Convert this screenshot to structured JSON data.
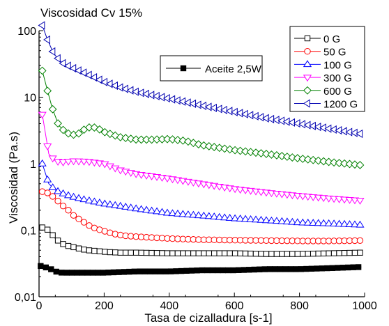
{
  "chart_data": {
    "type": "line",
    "title": "Viscosidad Cv 15%",
    "xlabel": "Tasa de cizalladura [s-1]",
    "ylabel": "Viscosidad (Pa.s)",
    "xlim": [
      0,
      1000
    ],
    "ylim": [
      0.01,
      100
    ],
    "yscale": "log",
    "xticks": [
      0,
      200,
      400,
      600,
      800,
      1000
    ],
    "xtick_labels": [
      "0",
      "200",
      "400",
      "600",
      "800",
      "1000"
    ],
    "yticks": [
      0.01,
      0.1,
      1,
      10,
      100
    ],
    "ytick_labels": [
      "0,01",
      "0,1",
      "1",
      "10",
      "100"
    ],
    "grid": false,
    "legend_position": "top-right",
    "series": [
      {
        "name": "0 G",
        "color": "#000000",
        "marker": "square-open",
        "points": [
          [
            10,
            0.11
          ],
          [
            30,
            0.1
          ],
          [
            50,
            0.075
          ],
          [
            70,
            0.063
          ],
          [
            90,
            0.058
          ],
          [
            110,
            0.055
          ],
          [
            130,
            0.052
          ],
          [
            150,
            0.05
          ],
          [
            170,
            0.049
          ],
          [
            190,
            0.048
          ],
          [
            210,
            0.047
          ],
          [
            250,
            0.046
          ],
          [
            300,
            0.046
          ],
          [
            400,
            0.045
          ],
          [
            500,
            0.045
          ],
          [
            600,
            0.045
          ],
          [
            700,
            0.044
          ],
          [
            800,
            0.044
          ],
          [
            900,
            0.045
          ],
          [
            990,
            0.046
          ]
        ]
      },
      {
        "name": "50 G",
        "color": "#ff0000",
        "marker": "circle-open",
        "points": [
          [
            10,
            0.38
          ],
          [
            30,
            0.36
          ],
          [
            50,
            0.3
          ],
          [
            70,
            0.24
          ],
          [
            90,
            0.2
          ],
          [
            110,
            0.16
          ],
          [
            130,
            0.14
          ],
          [
            150,
            0.12
          ],
          [
            170,
            0.108
          ],
          [
            190,
            0.1
          ],
          [
            210,
            0.094
          ],
          [
            230,
            0.088
          ],
          [
            260,
            0.083
          ],
          [
            300,
            0.08
          ],
          [
            400,
            0.075
          ],
          [
            500,
            0.072
          ],
          [
            600,
            0.071
          ],
          [
            700,
            0.07
          ],
          [
            800,
            0.069
          ],
          [
            900,
            0.069
          ],
          [
            990,
            0.07
          ]
        ]
      },
      {
        "name": "100 G",
        "color": "#0000ff",
        "marker": "triangle-up-open",
        "points": [
          [
            10,
            1.0
          ],
          [
            30,
            0.5
          ],
          [
            50,
            0.4
          ],
          [
            70,
            0.36
          ],
          [
            100,
            0.32
          ],
          [
            150,
            0.28
          ],
          [
            200,
            0.25
          ],
          [
            250,
            0.23
          ],
          [
            300,
            0.21
          ],
          [
            400,
            0.18
          ],
          [
            500,
            0.165
          ],
          [
            600,
            0.15
          ],
          [
            700,
            0.14
          ],
          [
            800,
            0.13
          ],
          [
            900,
            0.125
          ],
          [
            990,
            0.12
          ]
        ]
      },
      {
        "name": "300 G",
        "color": "#ff00ff",
        "marker": "triangle-down-open",
        "points": [
          [
            10,
            5.5
          ],
          [
            30,
            1.4
          ],
          [
            50,
            1.1
          ],
          [
            70,
            1.05
          ],
          [
            100,
            1.1
          ],
          [
            150,
            1.08
          ],
          [
            200,
            1.0
          ],
          [
            250,
            0.8
          ],
          [
            300,
            0.7
          ],
          [
            400,
            0.6
          ],
          [
            500,
            0.5
          ],
          [
            600,
            0.42
          ],
          [
            700,
            0.37
          ],
          [
            800,
            0.33
          ],
          [
            900,
            0.3
          ],
          [
            990,
            0.28
          ]
        ]
      },
      {
        "name": "600 G",
        "color": "#008000",
        "marker": "diamond-open",
        "points": [
          [
            10,
            25
          ],
          [
            25,
            13
          ],
          [
            40,
            7
          ],
          [
            60,
            3.8
          ],
          [
            80,
            3.0
          ],
          [
            100,
            2.7
          ],
          [
            120,
            2.8
          ],
          [
            140,
            3.3
          ],
          [
            160,
            3.6
          ],
          [
            180,
            3.4
          ],
          [
            200,
            3.0
          ],
          [
            250,
            2.5
          ],
          [
            300,
            2.3
          ],
          [
            350,
            2.3
          ],
          [
            400,
            2.35
          ],
          [
            450,
            2.2
          ],
          [
            500,
            1.9
          ],
          [
            600,
            1.6
          ],
          [
            700,
            1.4
          ],
          [
            800,
            1.2
          ],
          [
            900,
            1.05
          ],
          [
            990,
            0.95
          ]
        ]
      },
      {
        "name": "1200 G",
        "color": "#0000b0",
        "marker": "triangle-left-open",
        "points": [
          [
            10,
            120
          ],
          [
            25,
            75
          ],
          [
            45,
            45
          ],
          [
            70,
            33
          ],
          [
            100,
            28
          ],
          [
            150,
            22
          ],
          [
            200,
            17
          ],
          [
            250,
            14
          ],
          [
            300,
            12
          ],
          [
            400,
            9.5
          ],
          [
            500,
            7.5
          ],
          [
            600,
            6.0
          ],
          [
            700,
            4.8
          ],
          [
            800,
            4.0
          ],
          [
            900,
            3.3
          ],
          [
            990,
            2.8
          ]
        ]
      },
      {
        "name": "Aceite 2,5W",
        "color": "#000000",
        "marker": "square-filled",
        "points": [
          [
            5,
            0.029
          ],
          [
            15,
            0.028
          ],
          [
            30,
            0.027
          ],
          [
            50,
            0.024
          ],
          [
            70,
            0.023
          ],
          [
            100,
            0.023
          ],
          [
            200,
            0.023
          ],
          [
            300,
            0.024
          ],
          [
            400,
            0.024
          ],
          [
            500,
            0.025
          ],
          [
            600,
            0.025
          ],
          [
            700,
            0.026
          ],
          [
            800,
            0.026
          ],
          [
            900,
            0.027
          ],
          [
            990,
            0.028
          ]
        ]
      }
    ]
  }
}
